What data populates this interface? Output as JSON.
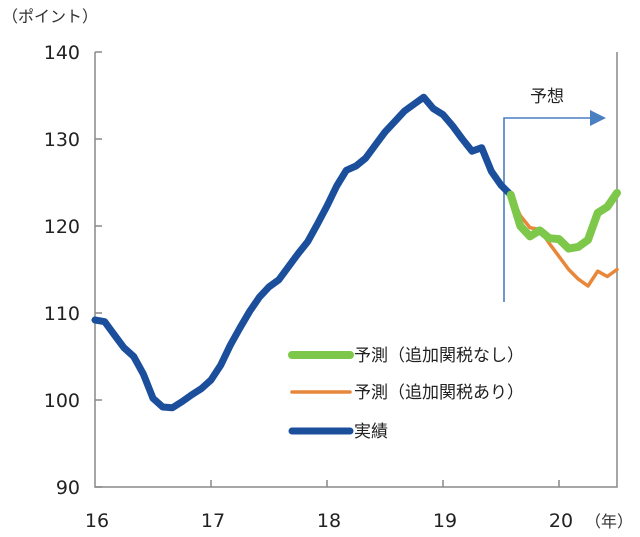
{
  "chart_data": {
    "type": "line",
    "title": "",
    "ylabel": "（ポイント）",
    "xlabel": "（年）",
    "ylim": [
      90,
      140
    ],
    "yticks": [
      "90",
      "100",
      "110",
      "120",
      "130",
      "140"
    ],
    "xticks": [
      "16",
      "17",
      "18",
      "19",
      "20"
    ],
    "x_start": "2016-01",
    "x_unit": "month",
    "forecast_label": "予想",
    "forecast_start": "2019-08",
    "legend_position": "bottom-center",
    "grid": false,
    "series": [
      {
        "name": "予測（追加関税なし）",
        "color": "#7dc84a",
        "start_month": "2019-08",
        "values": [
          123.6,
          120.0,
          118.8,
          119.5,
          118.6,
          118.5,
          117.4,
          117.6,
          118.4,
          121.5,
          122.2,
          123.8
        ]
      },
      {
        "name": "予測（追加関税あり）",
        "color": "#e8873a",
        "start_month": "2019-08",
        "values": [
          123.6,
          121.2,
          119.8,
          119.6,
          118.0,
          116.5,
          115.0,
          113.9,
          113.1,
          114.8,
          114.2,
          115.0
        ]
      },
      {
        "name": "実績",
        "color": "#1b4f9c",
        "start_month": "2016-01",
        "values": [
          109.2,
          109.0,
          107.5,
          106.0,
          105.0,
          103.0,
          100.2,
          99.2,
          99.1,
          99.8,
          100.6,
          101.3,
          102.3,
          104.0,
          106.3,
          108.3,
          110.2,
          111.8,
          113.0,
          113.8,
          115.3,
          116.8,
          118.2,
          120.2,
          122.3,
          124.6,
          126.4,
          126.9,
          127.8,
          129.3,
          130.8,
          132.0,
          133.2,
          134.0,
          134.8,
          133.5,
          132.8,
          131.5,
          130.0,
          128.6,
          129.0,
          126.3,
          124.7,
          123.6
        ]
      }
    ]
  }
}
